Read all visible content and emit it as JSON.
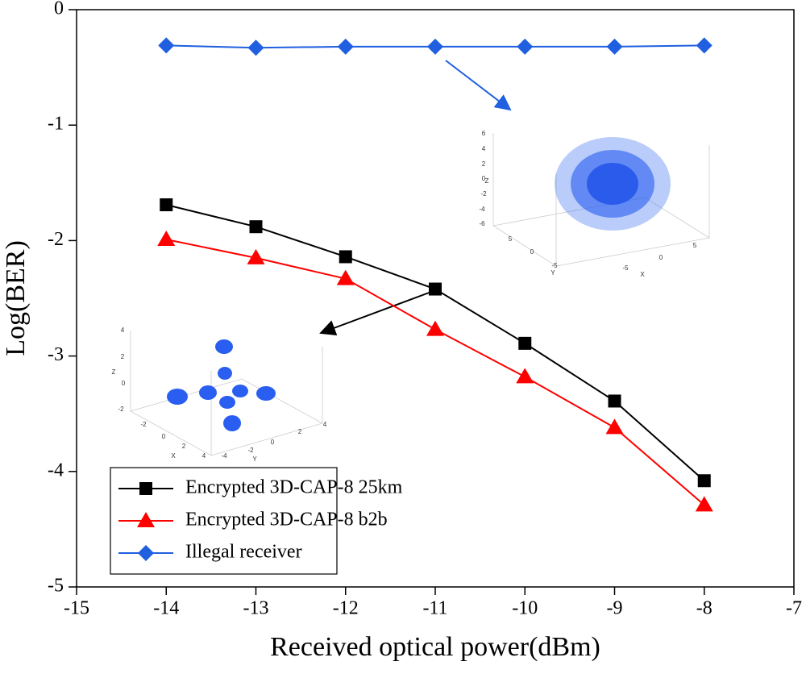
{
  "chart_data": {
    "type": "line",
    "xlabel": "Received optical power(dBm)",
    "ylabel": "Log(BER)",
    "x": [
      -14,
      -13,
      -12,
      -11,
      -10,
      -9,
      -8
    ],
    "series": [
      {
        "name": "Encrypted 3D-CAP-8 25km",
        "color": "#000000",
        "marker": "square",
        "values": [
          -1.69,
          -1.88,
          -2.14,
          -2.42,
          -2.89,
          -3.39,
          -4.08
        ]
      },
      {
        "name": "Encrypted 3D-CAP-8 b2b",
        "color": "#ff0000",
        "marker": "triangle",
        "values": [
          -1.99,
          -2.15,
          -2.33,
          -2.77,
          -3.18,
          -3.62,
          -4.29
        ]
      },
      {
        "name": "Illegal receiver",
        "color": "#1f5fe0",
        "marker": "diamond",
        "values": [
          -0.31,
          -0.33,
          -0.32,
          -0.32,
          -0.32,
          -0.32,
          -0.31
        ]
      }
    ],
    "xlim": [
      -15,
      -7
    ],
    "xticks": [
      -15,
      -14,
      -13,
      -12,
      -11,
      -10,
      -9,
      -8,
      -7
    ],
    "ylim": [
      -5,
      0
    ],
    "yticks": [
      -5,
      -4,
      -3,
      -2,
      -1,
      0
    ],
    "legend": "lower-left",
    "insets": [
      {
        "labels": [
          "6",
          "4",
          "2",
          "0",
          "-2",
          "-4",
          "-6",
          "Z",
          "5",
          "0",
          "-5",
          "Y",
          "-5",
          "0",
          "5",
          "X"
        ]
      },
      {
        "labels": [
          "4",
          "2",
          "0",
          "-2",
          "Z",
          "-2",
          "0",
          "2",
          "4",
          "X",
          "-4",
          "-2",
          "0",
          "2",
          "4",
          "Y"
        ]
      }
    ]
  }
}
